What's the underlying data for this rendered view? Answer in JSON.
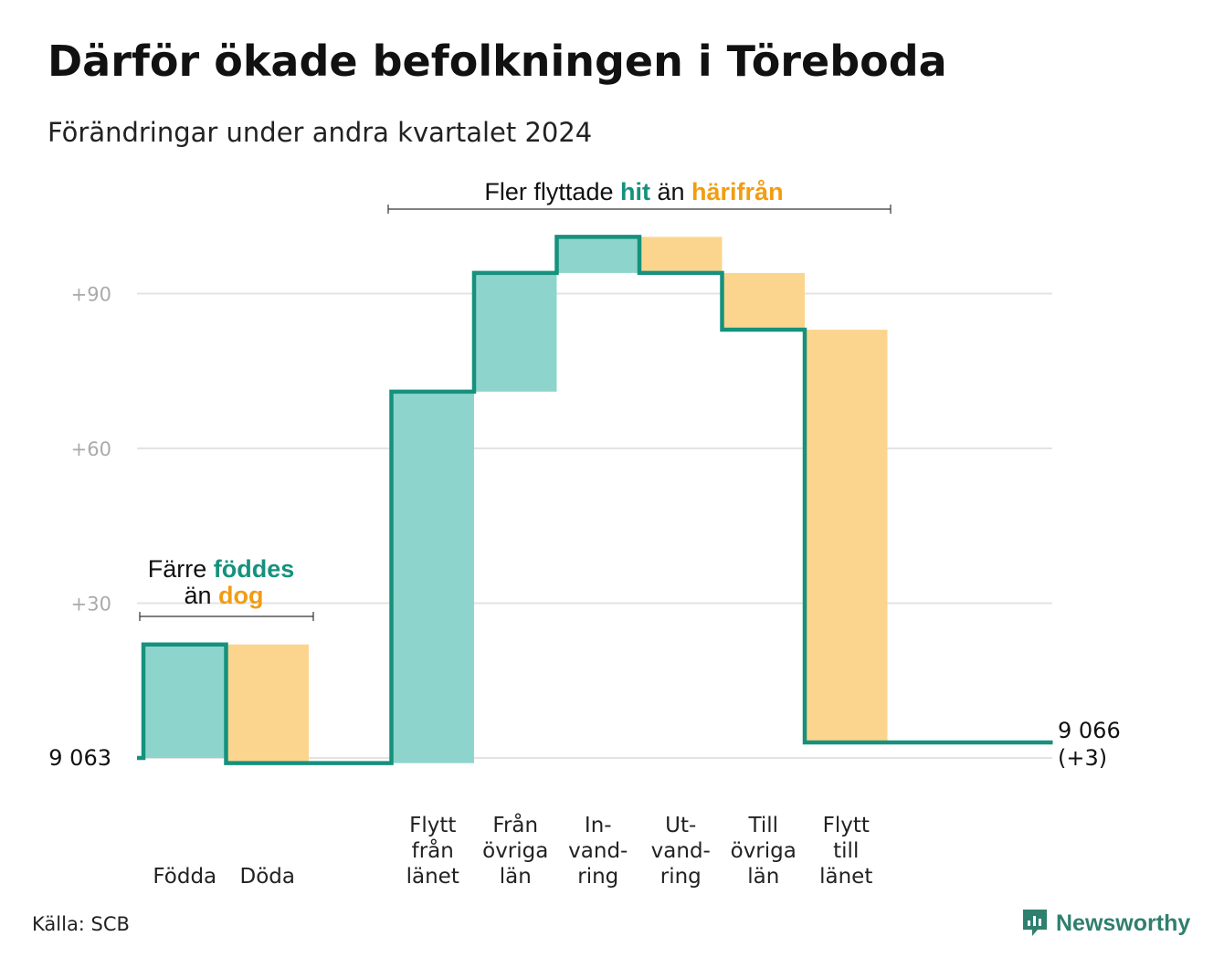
{
  "title": "Därför ökade befolkningen i Töreboda",
  "subtitle": "Förändringar under andra kvartalet 2024",
  "source": "Källa: SCB",
  "brand": "Newsworthy",
  "colors": {
    "increase": "#8dd5cc",
    "decrease": "#fbd58e",
    "line": "#16917d",
    "grid": "#e3e3e3",
    "highlight_teal": "#16917d",
    "highlight_orange": "#f39c12"
  },
  "annotations": {
    "birth_death": {
      "line1_prefix": "Färre ",
      "line1_highlight": "föddes",
      "line2_prefix": "än ",
      "line2_highlight": "dog"
    },
    "migration": {
      "prefix": "Fler flyttade ",
      "highlight1": "hit",
      "middle": " än ",
      "highlight2": "härifrån"
    }
  },
  "chart_data": {
    "type": "waterfall",
    "title": "Därför ökade befolkningen i Töreboda",
    "subtitle": "Förändringar under andra kvartalet 2024",
    "start_label": "9 063",
    "end_label": [
      "9 066",
      "(+3)"
    ],
    "ylim": [
      0,
      105
    ],
    "yticks": [
      {
        "value": 0,
        "label": "9 063"
      },
      {
        "value": 30,
        "label": "+30"
      },
      {
        "value": 60,
        "label": "+60"
      },
      {
        "value": 90,
        "label": "+90"
      }
    ],
    "grid": true,
    "steps": [
      {
        "category": [
          "Födda"
        ],
        "change": 22
      },
      {
        "category": [
          "Döda"
        ],
        "change": -23
      },
      {
        "category": [],
        "change": 0
      },
      {
        "category": [
          "Flytt",
          "från",
          "länet"
        ],
        "change": 72
      },
      {
        "category": [
          "Från",
          "övriga",
          "län"
        ],
        "change": 23
      },
      {
        "category": [
          "In-",
          "vand-",
          "ring"
        ],
        "change": 7
      },
      {
        "category": [
          "Ut-",
          "vand-",
          "ring"
        ],
        "change": -7
      },
      {
        "category": [
          "Till",
          "övriga",
          "län"
        ],
        "change": -11
      },
      {
        "category": [
          "Flytt",
          "till",
          "länet"
        ],
        "change": -80
      },
      {
        "category": [],
        "change": 0
      },
      {
        "category": [],
        "change": 0
      }
    ]
  }
}
